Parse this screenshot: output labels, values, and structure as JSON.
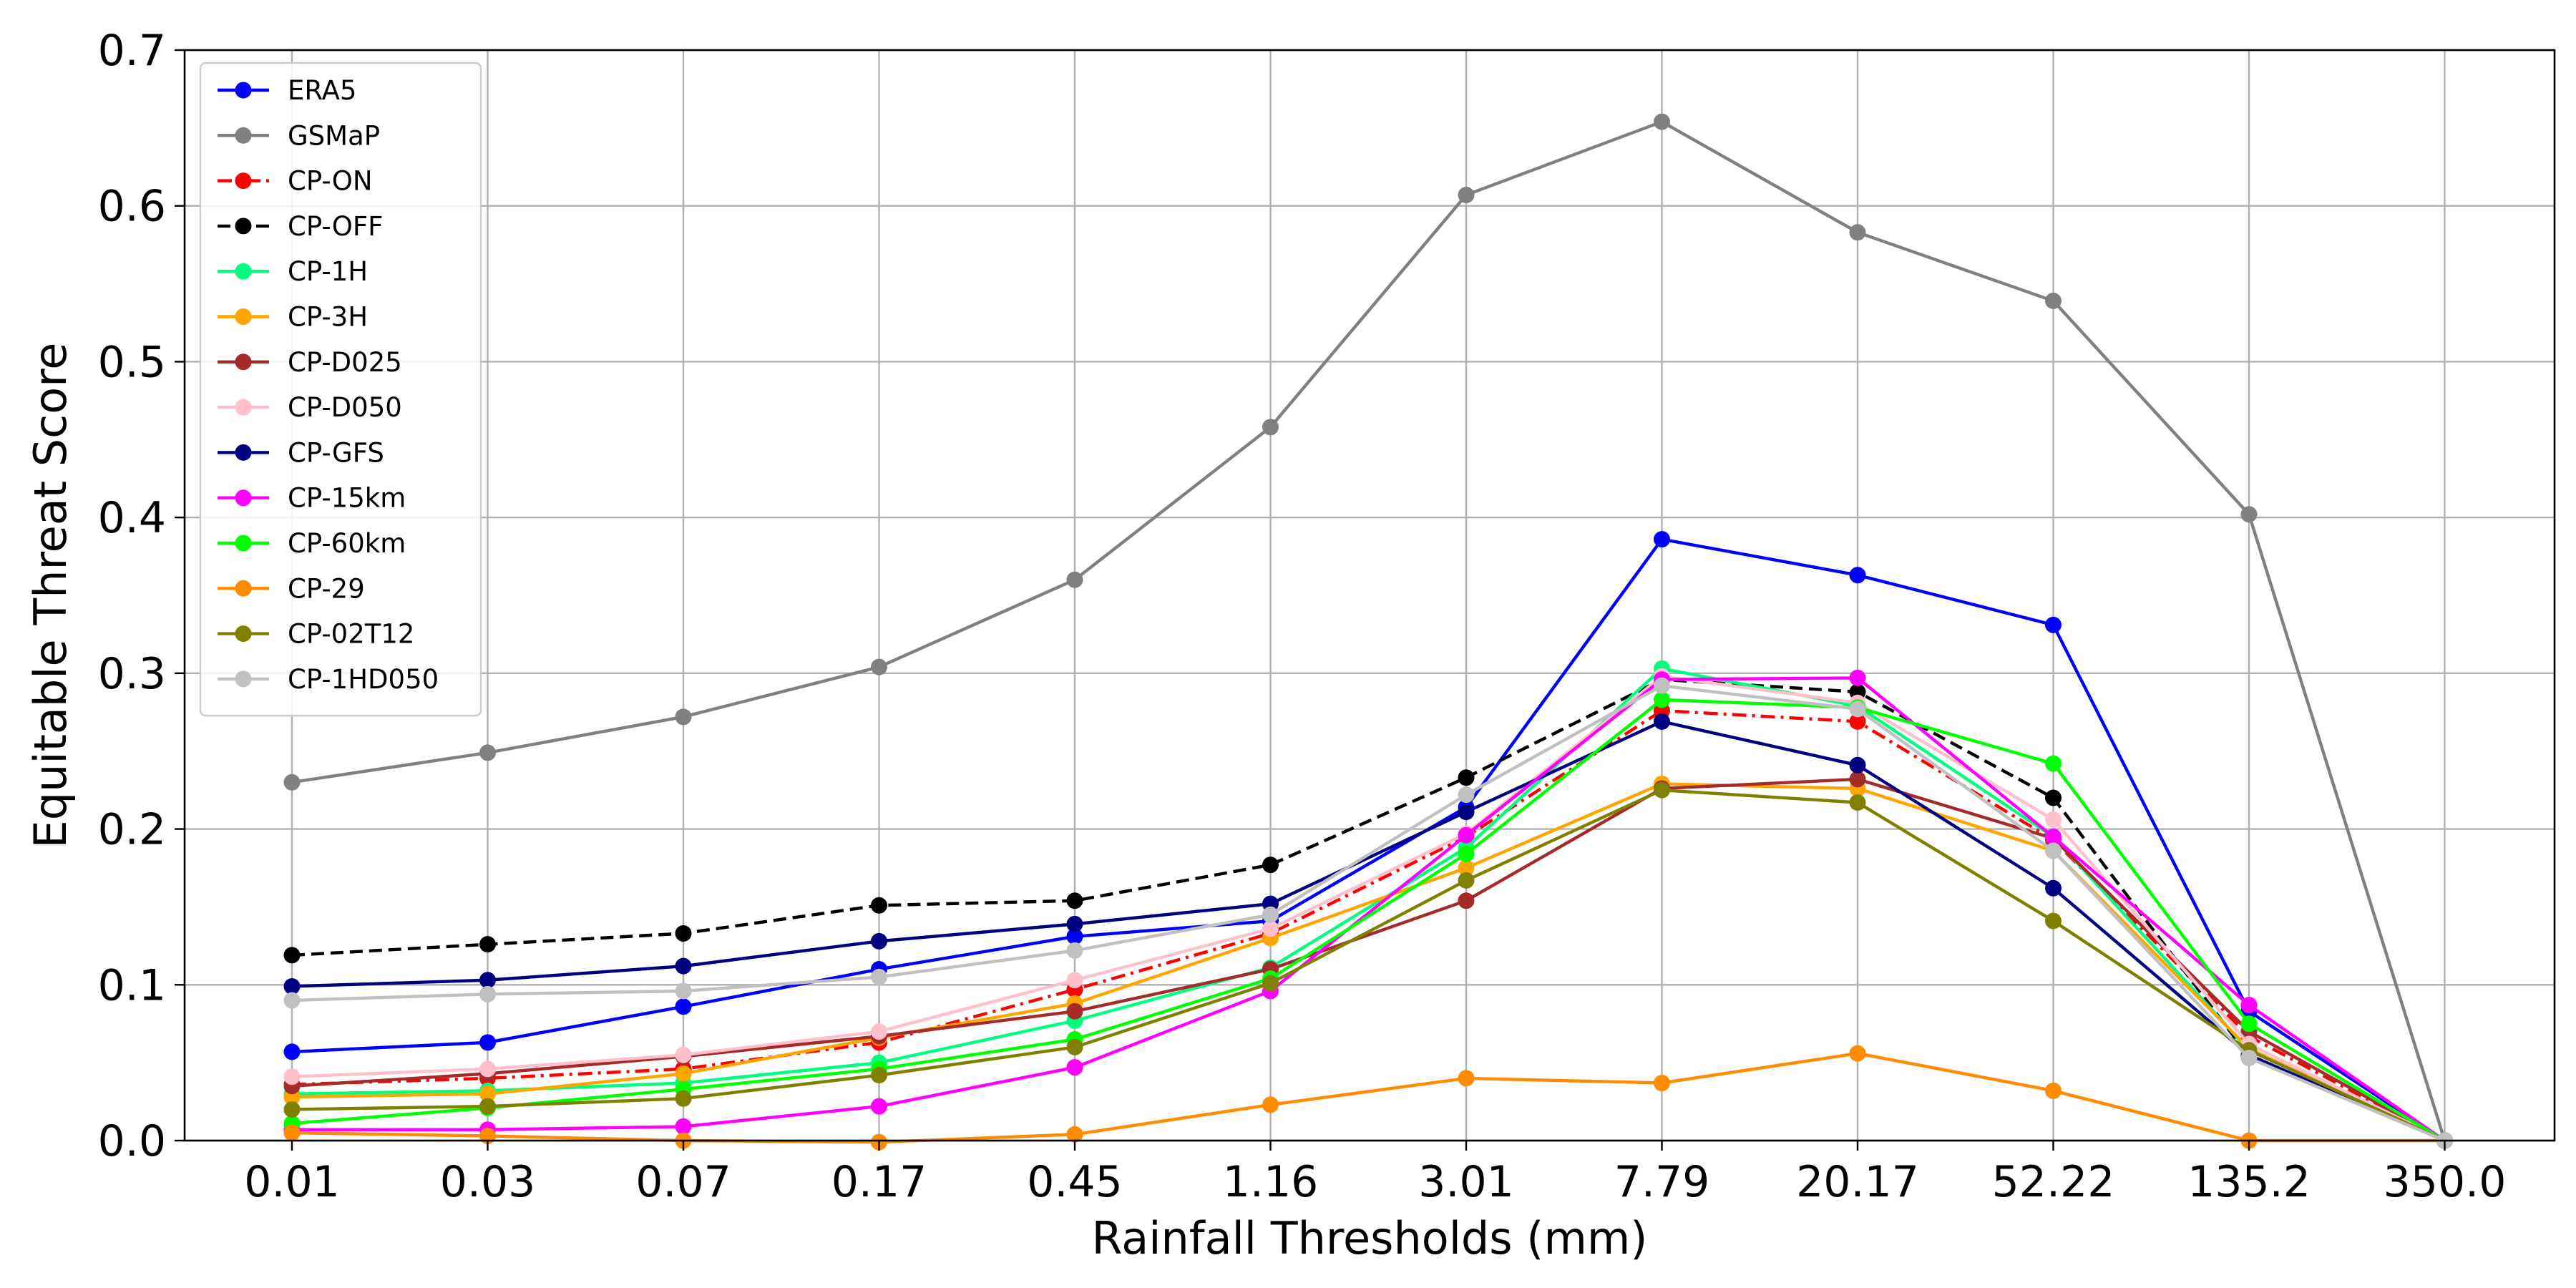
{
  "chart_data": {
    "type": "line",
    "xlabel": "Rainfall Thresholds (mm)",
    "ylabel": "Equitable Threat Score",
    "categories": [
      "0.01",
      "0.03",
      "0.07",
      "0.17",
      "0.45",
      "1.16",
      "3.01",
      "7.79",
      "20.17",
      "52.22",
      "135.2",
      "350.0"
    ],
    "ylim": [
      0,
      0.7
    ],
    "yticks": [
      "0.0",
      "0.1",
      "0.2",
      "0.3",
      "0.4",
      "0.5",
      "0.6",
      "0.7"
    ],
    "grid": true,
    "legend_position": "top-left",
    "series": [
      {
        "name": "ERA5",
        "color": "#0000ff",
        "dash": "solid",
        "values": [
          0.057,
          0.063,
          0.086,
          0.11,
          0.131,
          0.141,
          0.214,
          0.386,
          0.363,
          0.331,
          0.083,
          0.0
        ]
      },
      {
        "name": "GSMaP",
        "color": "#808080",
        "dash": "solid",
        "values": [
          0.23,
          0.249,
          0.272,
          0.304,
          0.36,
          0.458,
          0.607,
          0.654,
          0.583,
          0.539,
          0.402,
          0.0
        ]
      },
      {
        "name": "CP-ON",
        "color": "#ff0000",
        "dash": "dashdot",
        "values": [
          0.036,
          0.04,
          0.046,
          0.063,
          0.097,
          0.133,
          0.195,
          0.276,
          0.269,
          0.193,
          0.067,
          0.0
        ]
      },
      {
        "name": "CP-OFF",
        "color": "#000000",
        "dash": "dashed",
        "values": [
          0.119,
          0.126,
          0.133,
          0.151,
          0.154,
          0.177,
          0.233,
          0.296,
          0.288,
          0.22,
          0.054,
          0.0
        ]
      },
      {
        "name": "CP-1H",
        "color": "#00ff7f",
        "dash": "solid",
        "values": [
          0.03,
          0.032,
          0.037,
          0.05,
          0.077,
          0.111,
          0.188,
          0.303,
          0.279,
          0.195,
          0.058,
          0.0
        ]
      },
      {
        "name": "CP-3H",
        "color": "#ffa500",
        "dash": "solid",
        "values": [
          0.028,
          0.03,
          0.043,
          0.066,
          0.088,
          0.13,
          0.175,
          0.229,
          0.226,
          0.186,
          0.059,
          0.0
        ]
      },
      {
        "name": "CP-D025",
        "color": "#a52a2a",
        "dash": "solid",
        "values": [
          0.035,
          0.043,
          0.054,
          0.067,
          0.083,
          0.11,
          0.154,
          0.226,
          0.232,
          0.194,
          0.07,
          0.0
        ]
      },
      {
        "name": "CP-D050",
        "color": "#ffc0cb",
        "dash": "solid",
        "values": [
          0.041,
          0.046,
          0.055,
          0.07,
          0.103,
          0.136,
          0.197,
          0.298,
          0.281,
          0.206,
          0.062,
          0.0
        ]
      },
      {
        "name": "CP-GFS",
        "color": "#000080",
        "dash": "solid",
        "values": [
          0.099,
          0.103,
          0.112,
          0.128,
          0.139,
          0.152,
          0.211,
          0.269,
          0.241,
          0.162,
          0.055,
          0.0
        ]
      },
      {
        "name": "CP-15km",
        "color": "#ff00ff",
        "dash": "solid",
        "values": [
          0.007,
          0.007,
          0.009,
          0.022,
          0.047,
          0.096,
          0.196,
          0.296,
          0.297,
          0.195,
          0.087,
          0.0
        ]
      },
      {
        "name": "CP-60km",
        "color": "#00ff00",
        "dash": "solid",
        "values": [
          0.011,
          0.021,
          0.033,
          0.046,
          0.065,
          0.104,
          0.184,
          0.283,
          0.278,
          0.242,
          0.075,
          0.0
        ]
      },
      {
        "name": "CP-29",
        "color": "#ff8c00",
        "dash": "solid",
        "values": [
          0.005,
          0.003,
          0.0,
          -0.001,
          0.004,
          0.023,
          0.04,
          0.037,
          0.056,
          0.032,
          0.0,
          0.0
        ]
      },
      {
        "name": "CP-02T12",
        "color": "#808000",
        "dash": "solid",
        "values": [
          0.02,
          0.022,
          0.027,
          0.042,
          0.06,
          0.101,
          0.167,
          0.225,
          0.217,
          0.141,
          0.058,
          0.0
        ]
      },
      {
        "name": "CP-1HD050",
        "color": "#c0c0c0",
        "dash": "solid",
        "values": [
          0.09,
          0.094,
          0.096,
          0.105,
          0.122,
          0.145,
          0.222,
          0.292,
          0.277,
          0.186,
          0.053,
          0.0
        ]
      }
    ]
  }
}
